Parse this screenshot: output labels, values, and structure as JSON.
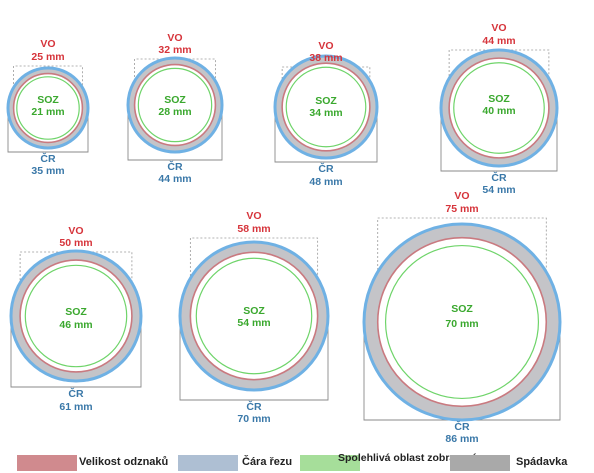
{
  "badges": [
    {
      "vo": "25 mm",
      "soz": "21 mm",
      "cr": "35 mm"
    },
    {
      "vo": "32 mm",
      "soz": "28 mm",
      "cr": "44 mm"
    },
    {
      "vo": "38 mm",
      "soz": "34 mm",
      "cr": "48 mm"
    },
    {
      "vo": "44 mm",
      "soz": "40 mm",
      "cr": "54 mm"
    },
    {
      "vo": "50 mm",
      "soz": "46 mm",
      "cr": "61 mm"
    },
    {
      "vo": "58 mm",
      "soz": "54 mm",
      "cr": "70 mm"
    },
    {
      "vo": "75 mm",
      "soz": "70 mm",
      "cr": "86 mm"
    }
  ],
  "labels": {
    "vo": "VO",
    "soz": "SOZ",
    "cr": "ČR"
  },
  "legend": [
    {
      "label": "Velikost odznaků",
      "color": "#d08a8e"
    },
    {
      "label": "Čára řezu",
      "color": "#aebfd3"
    },
    {
      "label": "Spolehlivá oblast zobrazení",
      "color": "#a6de9a"
    },
    {
      "label": "Spádavka",
      "color": "#a9a9a9"
    }
  ],
  "colors": {
    "vo_text": "#d6343b",
    "cr_text": "#3a78a8",
    "soz_text": "#3aa82e",
    "bleed_fill": "#c4c4c8",
    "cut_stroke": "#6fb1e4",
    "badge_stroke": "#c97a80",
    "safe_stroke": "#6fd46a"
  }
}
